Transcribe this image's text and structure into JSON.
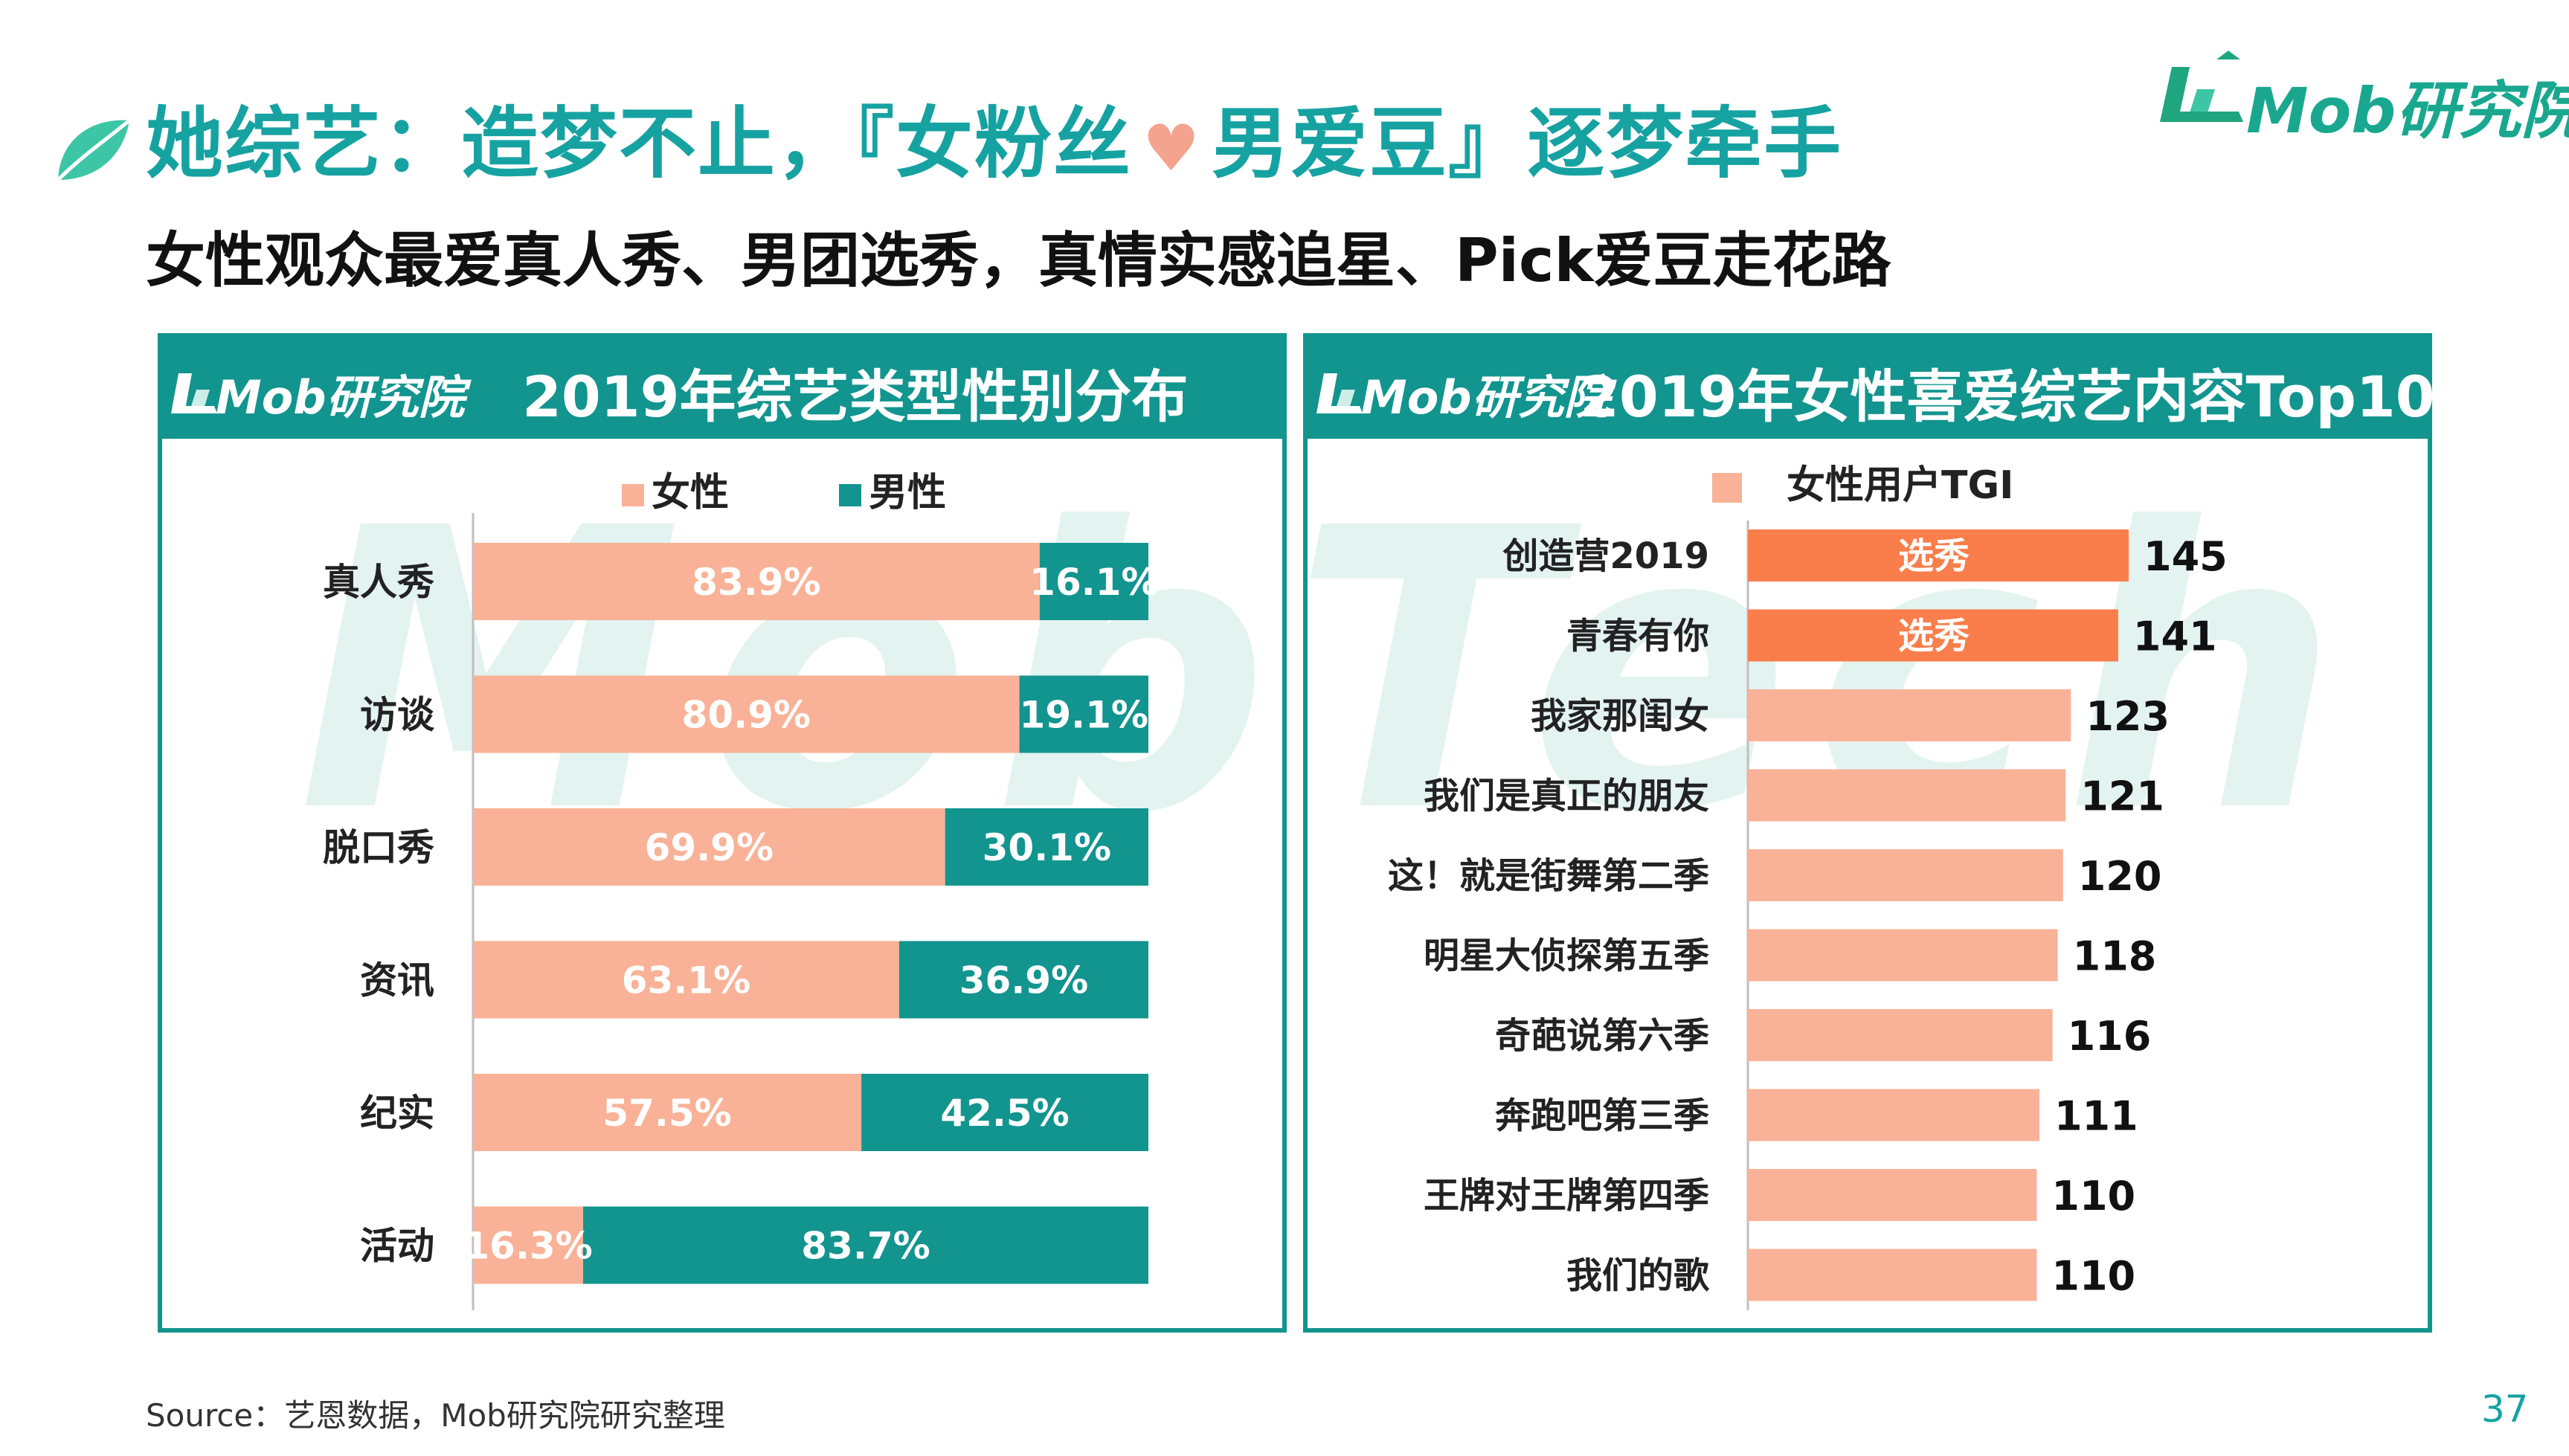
{
  "page": {
    "title_part1": "她综艺：造梦不止，『女粉丝",
    "heart": "♥",
    "title_part2": "男爱豆』逐梦牵手",
    "subtitle": "女性观众最爱真人秀、男团选秀，真情实感追星、Pick爱豆走花路",
    "brand": "Mob研究院",
    "watermark": "MobTech",
    "source": "Source：艺恩数据，Mob研究院研究整理",
    "page_number": "37"
  },
  "colors": {
    "teal": "#12948F",
    "title_teal": "#17A2A2",
    "female_salmon": "#F9B297",
    "highlight_orange": "#FA7E4B"
  },
  "left_panel": {
    "logo": "Mob研究院",
    "title": "2019年综艺类型性别分布"
  },
  "right_panel": {
    "logo": "Mob研究院",
    "title": "2019年女性喜爱综艺内容Top10"
  },
  "chart_data": [
    {
      "type": "bar",
      "orientation": "horizontal",
      "stacked": true,
      "categories": [
        "真人秀",
        "访谈",
        "脱口秀",
        "资讯",
        "纪实",
        "活动"
      ],
      "series": [
        {
          "name": "女性",
          "values": [
            83.9,
            80.9,
            69.9,
            63.1,
            57.5,
            16.3
          ],
          "labels": [
            "83.9%",
            "80.9%",
            "69.9%",
            "63.1%",
            "57.5%",
            "16.3%"
          ],
          "color": "#F9B297"
        },
        {
          "name": "男性",
          "values": [
            16.1,
            19.1,
            30.1,
            36.9,
            42.5,
            83.7
          ],
          "labels": [
            "16.1%",
            "19.1%",
            "30.1%",
            "36.9%",
            "42.5%",
            "83.7%"
          ],
          "color": "#12948F"
        }
      ],
      "xlim": [
        0,
        100
      ],
      "legend": "top",
      "grid": false
    },
    {
      "type": "bar",
      "orientation": "horizontal",
      "categories": [
        "创造营2019",
        "青春有你",
        "我家那闺女",
        "我们是真正的朋友",
        "这！就是街舞第二季",
        "明星大侦探第五季",
        "奇葩说第六季",
        "奔跑吧第三季",
        "王牌对王牌第四季",
        "我们的歌"
      ],
      "series": [
        {
          "name": "女性用户TGI",
          "values": [
            145,
            141,
            123,
            121,
            120,
            118,
            116,
            111,
            110,
            110
          ],
          "color": "#F9B297"
        }
      ],
      "highlight": [
        {
          "index": 0,
          "text": "选秀",
          "color": "#FA7E4B"
        },
        {
          "index": 1,
          "text": "选秀",
          "color": "#FA7E4B"
        }
      ],
      "xlim": [
        0,
        145
      ],
      "legend": "top",
      "grid": false
    }
  ]
}
